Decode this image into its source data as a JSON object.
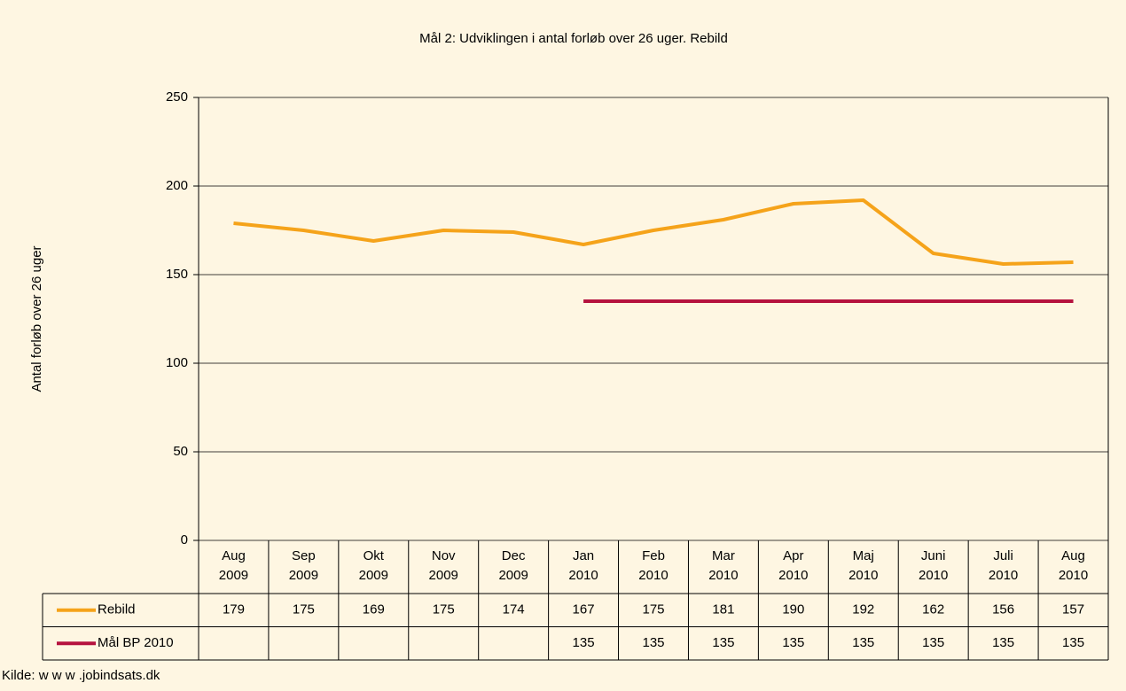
{
  "chart_data": {
    "type": "line",
    "title": "Mål 2: Udviklingen i antal forløb over 26 uger. Rebild",
    "y_label": "Antal forløb over 26 uger",
    "source": "Kilde: w w w .jobindsats.dk",
    "categories": [
      "Aug 2009",
      "Sep 2009",
      "Okt 2009",
      "Nov 2009",
      "Dec 2009",
      "Jan 2010",
      "Feb 2010",
      "Mar 2010",
      "Apr 2010",
      "Maj 2010",
      "Juni 2010",
      "Juli 2010",
      "Aug 2010"
    ],
    "series": [
      {
        "name": "Rebild",
        "color": "#f5a31a",
        "values": [
          179,
          175,
          169,
          175,
          174,
          167,
          175,
          181,
          190,
          192,
          162,
          156,
          157
        ]
      },
      {
        "name": "Mål BP 2010",
        "color": "#b5123e",
        "values": [
          null,
          null,
          null,
          null,
          null,
          135,
          135,
          135,
          135,
          135,
          135,
          135,
          135
        ]
      }
    ],
    "ylim": [
      0,
      250
    ],
    "yticks": [
      0,
      50,
      100,
      150,
      200,
      250
    ],
    "grid": true
  }
}
